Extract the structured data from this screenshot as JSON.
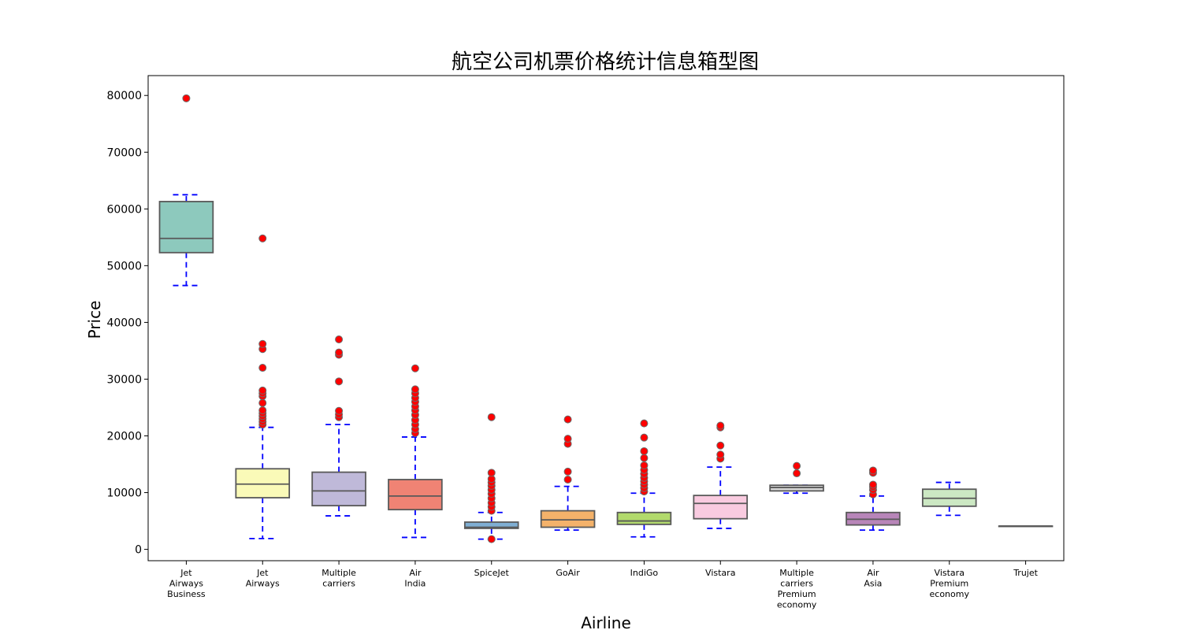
{
  "chart_data": {
    "type": "box",
    "title": "航空公司机票价格统计信息箱型图",
    "xlabel": "Airline",
    "ylabel": "Price",
    "ylim": [
      -2000,
      83500
    ],
    "yticks": [
      0,
      10000,
      20000,
      30000,
      40000,
      50000,
      60000,
      70000,
      80000
    ],
    "grid": false,
    "whisker_color": "#0000ff",
    "outlier_color": "#ff0000",
    "median_color": "#595959",
    "categories": [
      {
        "name": "Jet Airways Business",
        "label_lines": [
          "Jet",
          "Airways",
          "Business"
        ],
        "color": "#8dc9bd",
        "whisker_low": 46500,
        "q1": 52300,
        "median": 54800,
        "q3": 61300,
        "whisker_high": 62500,
        "outliers": [
          79500
        ]
      },
      {
        "name": "Jet Airways",
        "label_lines": [
          "Jet",
          "Airways"
        ],
        "color": "#fafab8",
        "whisker_low": 1900,
        "q1": 9100,
        "median": 11500,
        "q3": 14200,
        "whisker_high": 21500,
        "outliers": [
          22000,
          22500,
          23000,
          23500,
          24000,
          24500,
          25800,
          27000,
          27500,
          28000,
          32000,
          35300,
          36200,
          54800
        ]
      },
      {
        "name": "Multiple carriers",
        "label_lines": [
          "Multiple",
          "carriers"
        ],
        "color": "#bfb9d9",
        "whisker_low": 5900,
        "q1": 7700,
        "median": 10300,
        "q3": 13600,
        "whisker_high": 22000,
        "outliers": [
          23300,
          23800,
          24400,
          29600,
          34300,
          34700,
          37000
        ]
      },
      {
        "name": "Air India",
        "label_lines": [
          "Air",
          "India"
        ],
        "color": "#f08374",
        "whisker_low": 2100,
        "q1": 7000,
        "median": 9400,
        "q3": 12300,
        "whisker_high": 19800,
        "outliers": [
          20500,
          21200,
          22000,
          22800,
          23700,
          24500,
          25200,
          26000,
          26700,
          27500,
          28200,
          31900
        ]
      },
      {
        "name": "SpiceJet",
        "label_lines": [
          "SpiceJet"
        ],
        "color": "#7faed3",
        "whisker_low": 1800,
        "q1": 3700,
        "median": 3900,
        "q3": 4800,
        "whisker_high": 6500,
        "outliers": [
          1800,
          6800,
          7500,
          8200,
          9000,
          9800,
          10500,
          11200,
          11800,
          12400,
          13500,
          23300
        ]
      },
      {
        "name": "GoAir",
        "label_lines": [
          "GoAir"
        ],
        "color": "#f4b26a",
        "whisker_low": 3400,
        "q1": 3900,
        "median": 5200,
        "q3": 6800,
        "whisker_high": 11100,
        "outliers": [
          12300,
          13700,
          18600,
          19500,
          22900
        ]
      },
      {
        "name": "IndiGo",
        "label_lines": [
          "IndiGo"
        ],
        "color": "#b2da6c",
        "whisker_low": 2200,
        "q1": 4400,
        "median": 5000,
        "q3": 6500,
        "whisker_high": 9900,
        "outliers": [
          10200,
          10800,
          11400,
          12000,
          12600,
          13300,
          14000,
          14800,
          16100,
          17300,
          19700,
          22200
        ]
      },
      {
        "name": "Vistara",
        "label_lines": [
          "Vistara"
        ],
        "color": "#f9cbe0",
        "whisker_low": 3700,
        "q1": 5400,
        "median": 8100,
        "q3": 9500,
        "whisker_high": 14500,
        "outliers": [
          16000,
          16700,
          18300,
          21500,
          21800
        ]
      },
      {
        "name": "Multiple carriers Premium economy",
        "label_lines": [
          "Multiple",
          "carriers",
          "Premium",
          "economy"
        ],
        "color": "#d8d8d8",
        "whisker_low": 9900,
        "q1": 10300,
        "median": 10900,
        "q3": 11300,
        "whisker_high": 11300,
        "outliers": [
          13400,
          14700
        ]
      },
      {
        "name": "Air Asia",
        "label_lines": [
          "Air",
          "Asia"
        ],
        "color": "#b885b9",
        "whisker_low": 3400,
        "q1": 4300,
        "median": 5300,
        "q3": 6500,
        "whisker_high": 9400,
        "outliers": [
          9700,
          10500,
          11000,
          11400,
          13500,
          13900
        ]
      },
      {
        "name": "Vistara Premium economy",
        "label_lines": [
          "Vistara",
          "Premium",
          "economy"
        ],
        "color": "#cce8c3",
        "whisker_low": 6000,
        "q1": 7600,
        "median": 9000,
        "q3": 10600,
        "whisker_high": 11800,
        "outliers": []
      },
      {
        "name": "Trujet",
        "label_lines": [
          "Trujet"
        ],
        "color": "#f5f5b0",
        "whisker_low": 4100,
        "q1": 4100,
        "median": 4100,
        "q3": 4100,
        "whisker_high": 4100,
        "outliers": []
      }
    ]
  }
}
